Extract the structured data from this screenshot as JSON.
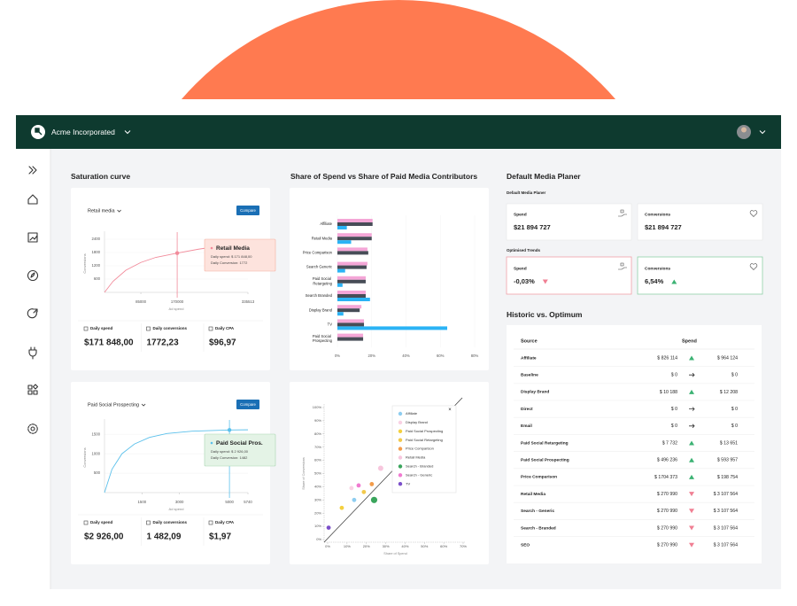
{
  "header": {
    "company": "Acme Incorporated"
  },
  "saturation": {
    "title": "Saturation curve",
    "cards": [
      {
        "channel": "Retail media",
        "button": "Compare",
        "ylabel": "Conversions",
        "xlabel": "Ad spend",
        "ylim": [
          0,
          2600
        ],
        "yticks": [
          600,
          1200,
          1800,
          2400
        ],
        "xlim": [
          0,
          335513
        ],
        "xticks": [
          85000,
          170000,
          335513
        ],
        "color": "#f28b9b",
        "curve": {
          "x": [
            0,
            20000,
            50000,
            85000,
            120000,
            170000,
            220000,
            280000,
            335513
          ],
          "y": [
            0,
            500,
            1000,
            1350,
            1580,
            1772,
            1950,
            2120,
            2250
          ]
        },
        "tooltip": {
          "title": "Retail Media",
          "spend": "Daily spend: $ 171 848,00",
          "conversion": "Daily Conversion: 1772"
        },
        "stats": [
          {
            "label": "Daily spend",
            "value": "$171 848,00"
          },
          {
            "label": "Daily conversions",
            "value": "1772,23"
          },
          {
            "label": "Daily CPA",
            "value": "$96,97"
          }
        ]
      },
      {
        "channel": "Paid Social Prospecting",
        "button": "Compare",
        "ylabel": "Conversions",
        "xlabel": "Ad spend",
        "ylim": [
          0,
          1800
        ],
        "yticks": [
          500,
          1000,
          1500
        ],
        "xlim": [
          0,
          5740
        ],
        "xticks": [
          1500,
          3000,
          5000,
          5740
        ],
        "color": "#5bc0eb",
        "curve": {
          "x": [
            0,
            300,
            700,
            1200,
            1800,
            2500,
            3500,
            5000,
            5740
          ],
          "y": [
            0,
            600,
            1000,
            1250,
            1420,
            1520,
            1580,
            1610,
            1615
          ]
        },
        "tooltip": {
          "title": "Paid Social Pros.",
          "spend": "Daily spend: $ 2 926,00",
          "conversion": "Daily Conversion: 1482"
        },
        "stats": [
          {
            "label": "Daily spend",
            "value": "$2 926,00"
          },
          {
            "label": "Daily conversions",
            "value": "1 482,09"
          },
          {
            "label": "Daily CPA",
            "value": "$1,97"
          }
        ]
      }
    ]
  },
  "share": {
    "title": "Share of Spend vs Share of Paid Media Contributors",
    "bars": {
      "type": "bar",
      "orientation": "horizontal",
      "categories": [
        "Affiliate",
        "Retail Media",
        "Price Comparison",
        "Search Generic",
        "Paid Social Retargeting",
        "Search Branded",
        "Display Brand",
        "TV",
        "Paid Social Prospecting"
      ],
      "series": [
        {
          "color": "#f4a6d7",
          "values": [
            20.5,
            20,
            17.5,
            17.5,
            16.5,
            16.5,
            14,
            15.5,
            15
          ]
        },
        {
          "color": "#474d57",
          "values": [
            20.5,
            20,
            18,
            17,
            16.5,
            16.5,
            13,
            15.5,
            15
          ]
        },
        {
          "color": "#2bb3f5",
          "values": [
            5.5,
            8,
            0,
            4.5,
            3,
            19,
            3.5,
            64,
            0
          ]
        }
      ],
      "xlim": [
        0,
        80
      ],
      "xticks": [
        {
          "value": 0,
          "label": "0%"
        },
        {
          "value": 20,
          "label": "20%"
        },
        {
          "value": 40,
          "label": "40%"
        },
        {
          "value": 60,
          "label": "60%"
        },
        {
          "value": 80,
          "label": "80%"
        }
      ]
    },
    "scatter": {
      "type": "scatter",
      "xlabel": "Share of Spend",
      "ylabel": "Share of Conversions",
      "xlim": [
        0,
        70
      ],
      "ylim": [
        0,
        100
      ],
      "xticks": [
        {
          "value": 0,
          "label": "0%"
        },
        {
          "value": 10,
          "label": "10%"
        },
        {
          "value": 20,
          "label": "20%"
        },
        {
          "value": 30,
          "label": "30%"
        },
        {
          "value": 40,
          "label": "40%"
        },
        {
          "value": 50,
          "label": "50%"
        },
        {
          "value": 60,
          "label": "60%"
        },
        {
          "value": 70,
          "label": "70%"
        }
      ],
      "yticks": [
        {
          "value": 0,
          "label": "0%"
        },
        {
          "value": 10,
          "label": "10%"
        },
        {
          "value": 20,
          "label": "20%"
        },
        {
          "value": 30,
          "label": "30%"
        },
        {
          "value": 40,
          "label": "40%"
        },
        {
          "value": 50,
          "label": "50%"
        },
        {
          "value": 60,
          "label": "60%"
        },
        {
          "value": 70,
          "label": "70%"
        },
        {
          "value": 80,
          "label": "80%"
        },
        {
          "value": 90,
          "label": "90%"
        },
        {
          "value": 100,
          "label": "100%"
        }
      ],
      "series": [
        {
          "name": "Affiliate",
          "color": "#8ecdf0",
          "x": 13.7,
          "y": 30,
          "size": 4
        },
        {
          "name": "Display Brand",
          "color": "#f9d2e4",
          "x": 12.3,
          "y": 39,
          "size": 4
        },
        {
          "name": "Paid Social Prospecting",
          "color": "#f4d03f",
          "x": 7.3,
          "y": 24,
          "size": 4
        },
        {
          "name": "Paid Social Retargeting",
          "color": "#f2c94c",
          "x": 18.7,
          "y": 36,
          "size": 4
        },
        {
          "name": "Price Comparison",
          "color": "#f39c4a",
          "x": 22.8,
          "y": 42,
          "size": 4
        },
        {
          "name": "Retail Media",
          "color": "#f7c6dd",
          "x": 27.4,
          "y": 54,
          "size": 5
        },
        {
          "name": "Search - Branded",
          "color": "#3aa55c",
          "x": 24,
          "y": 30,
          "size": 6
        },
        {
          "name": "Search - Generic",
          "color": "#f07ad0",
          "x": 16,
          "y": 41,
          "size": 4
        },
        {
          "name": "TV",
          "color": "#7b4fc9",
          "x": 0.5,
          "y": 9,
          "size": 4
        }
      ]
    }
  },
  "planner": {
    "title": "Default Media Planer",
    "subtitle": "Default Media Planer",
    "spend": {
      "label": "Spend",
      "value": "$21 894 727"
    },
    "conversions": {
      "label": "Conversions",
      "value": "$21 894 727"
    },
    "trends_title": "Optimised Trends",
    "trends": [
      {
        "label": "Spend",
        "value": "-0,03%",
        "trend": "down"
      },
      {
        "label": "Conversions",
        "value": "6,54%",
        "trend": "up"
      }
    ]
  },
  "historic": {
    "title": "Historic vs. Optimum",
    "columns": [
      "Source",
      "Spend"
    ],
    "rows": [
      {
        "source": "Affiliate",
        "historic": "$ 826 114",
        "trend": "up",
        "optimum": "$ 964 124"
      },
      {
        "source": "Baseline",
        "historic": "$ 0",
        "trend": "flat",
        "optimum": "$ 0"
      },
      {
        "source": "Display Brand",
        "historic": "$ 10 188",
        "trend": "up",
        "optimum": "$ 12 208"
      },
      {
        "source": "Direct",
        "historic": "$ 0",
        "trend": "flat",
        "optimum": "$ 0"
      },
      {
        "source": "Email",
        "historic": "$ 0",
        "trend": "flat",
        "optimum": "$ 0"
      },
      {
        "source": "Paid Social Retargeting",
        "historic": "$ 7 732",
        "trend": "up",
        "optimum": "$ 13 651"
      },
      {
        "source": "Paid Social Prospecting",
        "historic": "$ 496 236",
        "trend": "up",
        "optimum": "$ 593 957"
      },
      {
        "source": "Price Comparison",
        "historic": "$ 1704 373",
        "trend": "up",
        "optimum": "$ 198 754"
      },
      {
        "source": "Retail Media",
        "historic": "$ 270 990",
        "trend": "down",
        "optimum": "$ 3 107 564"
      },
      {
        "source": "Search - Generic",
        "historic": "$ 270 990",
        "trend": "down",
        "optimum": "$ 3 107 564"
      },
      {
        "source": "Search - Branded",
        "historic": "$ 270 990",
        "trend": "down",
        "optimum": "$ 3 107 564"
      },
      {
        "source": "SEO",
        "historic": "$ 270 990",
        "trend": "down",
        "optimum": "$ 3 107 564"
      }
    ]
  }
}
